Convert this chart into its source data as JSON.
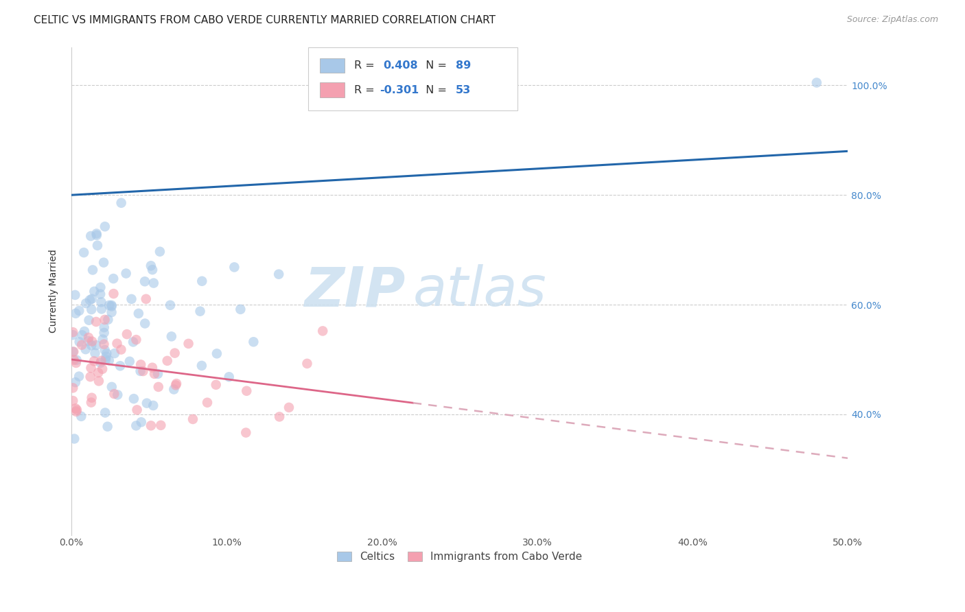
{
  "title": "CELTIC VS IMMIGRANTS FROM CABO VERDE CURRENTLY MARRIED CORRELATION CHART",
  "source": "Source: ZipAtlas.com",
  "ylabel": "Currently Married",
  "legend_labels": [
    "Celtics",
    "Immigrants from Cabo Verde"
  ],
  "blue_color": "#a8c8e8",
  "pink_color": "#f4a0b0",
  "blue_line_color": "#2266aa",
  "pink_line_color": "#dd6688",
  "pink_dash_color": "#ddaabb",
  "blue_R": 0.408,
  "blue_N": 89,
  "pink_R": -0.301,
  "pink_N": 53,
  "x_min": 0.0,
  "x_max": 50.0,
  "y_min": 18.0,
  "y_max": 107.0,
  "watermark_zip": "ZIP",
  "watermark_atlas": "atlas",
  "ytick_labels": [
    "40.0%",
    "60.0%",
    "80.0%",
    "100.0%"
  ],
  "ytick_values": [
    40,
    60,
    80,
    100
  ],
  "xtick_labels": [
    "0.0%",
    "10.0%",
    "20.0%",
    "30.0%",
    "40.0%",
    "50.0%"
  ],
  "xtick_values": [
    0,
    10,
    20,
    30,
    40,
    50
  ],
  "blue_line_x0": 0.0,
  "blue_line_x1": 50.0,
  "blue_line_y0": 80.0,
  "blue_line_y1": 88.0,
  "pink_line_x0": 0.0,
  "pink_line_x1": 50.0,
  "pink_line_y0": 50.0,
  "pink_line_y1": 32.0,
  "pink_solid_end_x": 22.0,
  "title_fontsize": 11,
  "axis_label_fontsize": 10,
  "tick_fontsize": 10,
  "source_fontsize": 9
}
